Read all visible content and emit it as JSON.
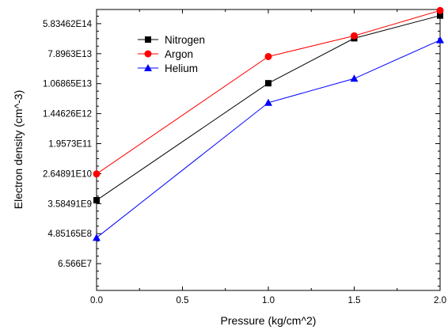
{
  "chart_data": {
    "type": "line",
    "title": "",
    "xlabel": "Pressure (kg/cm^2)",
    "ylabel": "Electron density (cm^-3)",
    "xlim": [
      0.0,
      2.0
    ],
    "x_ticks": [
      0.0,
      0.5,
      1.0,
      1.5,
      2.0
    ],
    "x_tick_labels": [
      "0.0",
      "0.5",
      "1.0",
      "1.5",
      "2.0"
    ],
    "y_scale": "log",
    "ylim": [
      11000000.0,
      1500000000000000.0
    ],
    "y_ticks": [
      65660000.0,
      485165000.0,
      3584910000.0,
      26489100000.0,
      195730000000.0,
      1446260000000.0,
      10686500000000.0,
      78963000000000.0,
      583462000000000.0
    ],
    "y_tick_labels": [
      "6.566E7",
      "4.85165E8",
      "3.58491E9",
      "2.64891E10",
      "1.9573E11",
      "1.44626E12",
      "1.06865E13",
      "7.8963E13",
      "5.83462E14"
    ],
    "grid": false,
    "legend_position": "top-left",
    "x": [
      0.0,
      1.0,
      1.5,
      2.0
    ],
    "series": [
      {
        "name": "Nitrogen",
        "color": "#000000",
        "marker": "square",
        "values": [
          4500000000.0,
          11000000000000.0,
          220000000000000.0,
          1000000000000000.0
        ]
      },
      {
        "name": "Argon",
        "color": "#ff0000",
        "marker": "circle",
        "values": [
          26000000000.0,
          65000000000000.0,
          260000000000000.0,
          1400000000000000.0
        ]
      },
      {
        "name": "Helium",
        "color": "#0000ff",
        "marker": "triangle",
        "values": [
          370000000.0,
          3000000000000.0,
          15000000000000.0,
          195000000000000.0
        ]
      }
    ]
  }
}
